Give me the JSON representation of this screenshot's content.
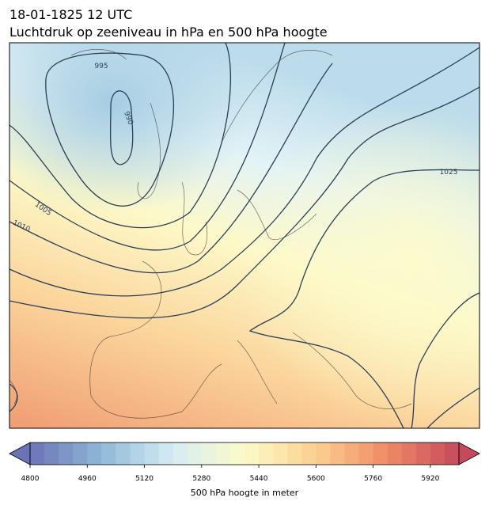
{
  "header": {
    "title": "18-01-1825 12 UTC",
    "subtitle": "Luchtdruk op zeeniveau in hPa en 500 hPa hoogte"
  },
  "map": {
    "contour_labels": [
      "995",
      "990",
      "1005",
      "1010",
      "1025"
    ],
    "colorbar": {
      "min": 4800,
      "max": 6000,
      "step": 40,
      "ticks": [
        4800,
        4960,
        5120,
        5280,
        5440,
        5600,
        5760,
        5920
      ],
      "label": "500 hPa hoogte in meter",
      "colors": [
        "#6a73b6",
        "#8fb9d8",
        "#d6ecf3",
        "#fcfbc8",
        "#fbd08f",
        "#ef8a66",
        "#c54a5c"
      ]
    }
  }
}
